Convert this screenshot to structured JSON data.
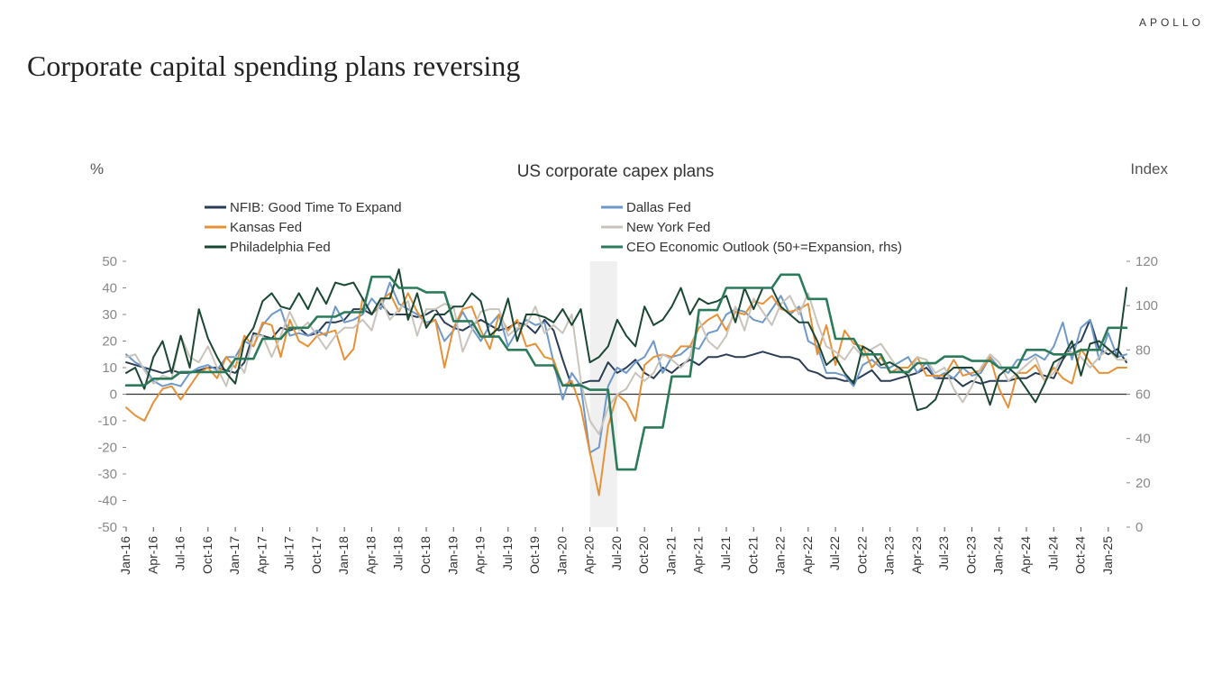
{
  "brand": "APOLLO",
  "title": "Corporate capital spending plans reversing",
  "chart": {
    "type": "line",
    "title": "US corporate capex plans",
    "y_left_label": "%",
    "y_right_label": "Index",
    "y_left": {
      "min": -50,
      "max": 50,
      "ticks": [
        -50,
        -40,
        -30,
        -20,
        -10,
        0,
        10,
        20,
        30,
        40,
        50
      ]
    },
    "y_right": {
      "min": 0,
      "max": 120,
      "ticks": [
        0,
        20,
        40,
        60,
        80,
        100,
        120
      ]
    },
    "x_labels": [
      "Jan-16",
      "Apr-16",
      "Jul-16",
      "Oct-16",
      "Jan-17",
      "Apr-17",
      "Jul-17",
      "Oct-17",
      "Jan-18",
      "Apr-18",
      "Jul-18",
      "Oct-18",
      "Jan-19",
      "Apr-19",
      "Jul-19",
      "Oct-19",
      "Jan-20",
      "Apr-20",
      "Jul-20",
      "Oct-20",
      "Jan-21",
      "Apr-21",
      "Jul-21",
      "Oct-21",
      "Jan-22",
      "Apr-22",
      "Jul-22",
      "Oct-22",
      "Jan-23",
      "Apr-23",
      "Jul-23",
      "Oct-23",
      "Jan-24",
      "Apr-24",
      "Jul-24",
      "Oct-24",
      "Jan-25"
    ],
    "n_points": 111,
    "recession_band": {
      "start_index": 51,
      "end_index": 54
    },
    "background_color": "#ffffff",
    "axis_color": "#333333",
    "tick_color": "#888888",
    "line_width": 2.0,
    "rhs_line_width": 2.6,
    "title_fontsize": 19,
    "label_fontsize": 17,
    "tick_fontsize": 15,
    "legend_fontsize": 15,
    "series": [
      {
        "name": "NFIB: Good Time To Expand",
        "color": "#2a3d55",
        "axis": "left",
        "values": [
          12,
          11,
          10,
          9,
          8,
          9,
          8,
          8,
          9,
          10,
          10,
          9,
          8,
          12,
          23,
          22,
          21,
          25,
          24,
          25,
          22,
          23,
          27,
          27,
          28,
          32,
          32,
          30,
          34,
          30,
          30,
          30,
          29,
          30,
          32,
          27,
          25,
          24,
          26,
          28,
          26,
          24,
          25,
          27,
          26,
          23,
          28,
          24,
          13,
          3,
          4,
          5,
          5,
          12,
          8,
          10,
          13,
          8,
          6,
          10,
          8,
          11,
          13,
          11,
          14,
          14,
          15,
          14,
          14,
          15,
          16,
          15,
          14,
          14,
          13,
          9,
          8,
          6,
          6,
          5,
          5,
          7,
          9,
          5,
          5,
          6,
          7,
          8,
          10,
          6,
          6,
          6,
          3,
          5,
          4,
          5,
          5,
          5,
          6,
          6,
          8,
          7,
          6,
          13,
          18,
          20,
          28,
          17,
          15,
          17,
          12
        ]
      },
      {
        "name": "Dallas Fed",
        "color": "#6e98c8",
        "axis": "left",
        "values": [
          15,
          12,
          10,
          5,
          3,
          4,
          3,
          8,
          10,
          11,
          9,
          14,
          14,
          20,
          18,
          26,
          30,
          32,
          22,
          23,
          22,
          24,
          22,
          33,
          27,
          28,
          30,
          36,
          32,
          42,
          34,
          32,
          30,
          27,
          28,
          20,
          24,
          31,
          25,
          20,
          26,
          30,
          18,
          24,
          28,
          26,
          27,
          12,
          -2,
          8,
          3,
          -22,
          -20,
          3,
          10,
          8,
          12,
          14,
          20,
          8,
          14,
          15,
          18,
          17,
          23,
          24,
          30,
          32,
          31,
          28,
          27,
          32,
          37,
          30,
          33,
          20,
          18,
          8,
          8,
          7,
          3,
          11,
          13,
          10,
          10,
          12,
          14,
          8,
          12,
          6,
          8,
          6,
          10,
          7,
          8,
          14,
          10,
          8,
          13,
          13,
          15,
          13,
          18,
          27,
          13,
          25,
          28,
          13,
          23,
          14,
          15
        ]
      },
      {
        "name": "Kansas Fed",
        "color": "#e69138",
        "axis": "left",
        "values": [
          -5,
          -8,
          -10,
          -3,
          2,
          3,
          -2,
          3,
          8,
          10,
          6,
          14,
          10,
          22,
          18,
          27,
          26,
          14,
          28,
          20,
          18,
          22,
          23,
          24,
          13,
          17,
          36,
          30,
          35,
          38,
          31,
          38,
          31,
          26,
          28,
          10,
          25,
          32,
          33,
          24,
          17,
          30,
          24,
          28,
          18,
          19,
          14,
          13,
          3,
          5,
          -5,
          -22,
          -38,
          -12,
          0,
          -3,
          -10,
          11,
          14,
          15,
          14,
          18,
          18,
          25,
          28,
          30,
          24,
          31,
          30,
          35,
          34,
          37,
          32,
          31,
          32,
          34,
          15,
          26,
          11,
          24,
          19,
          18,
          10,
          14,
          8,
          10,
          10,
          14,
          7,
          7,
          7,
          13,
          7,
          8,
          9,
          14,
          2,
          -5,
          8,
          8,
          11,
          5,
          10,
          6,
          4,
          17,
          12,
          8,
          8,
          10,
          10
        ]
      },
      {
        "name": "New York Fed",
        "color": "#c9c4bb",
        "axis": "left",
        "values": [
          14,
          15,
          9,
          4,
          7,
          6,
          22,
          14,
          12,
          18,
          10,
          3,
          14,
          8,
          22,
          22,
          14,
          22,
          31,
          24,
          27,
          22,
          17,
          22,
          25,
          25,
          28,
          24,
          36,
          28,
          32,
          35,
          22,
          32,
          32,
          34,
          33,
          16,
          24,
          31,
          32,
          32,
          22,
          25,
          26,
          33,
          23,
          26,
          23,
          30,
          5,
          -10,
          -15,
          -5,
          0,
          2,
          8,
          5,
          8,
          15,
          13,
          10,
          14,
          28,
          20,
          17,
          22,
          33,
          24,
          36,
          31,
          26,
          34,
          37,
          30,
          38,
          27,
          18,
          16,
          13,
          18,
          14,
          17,
          19,
          14,
          9,
          7,
          14,
          13,
          8,
          10,
          2,
          -3,
          3,
          10,
          15,
          12,
          5,
          8,
          11,
          14,
          5,
          8,
          15,
          16,
          14,
          10,
          14,
          17,
          13,
          13
        ]
      },
      {
        "name": "Philadelphia Fed",
        "color": "#1a4733",
        "axis": "left",
        "values": [
          8,
          10,
          2,
          14,
          20,
          8,
          22,
          10,
          32,
          21,
          14,
          8,
          4,
          20,
          25,
          35,
          38,
          33,
          32,
          38,
          32,
          40,
          34,
          42,
          41,
          42,
          36,
          30,
          36,
          36,
          47,
          28,
          38,
          25,
          30,
          30,
          33,
          33,
          38,
          35,
          22,
          25,
          36,
          20,
          30,
          30,
          29,
          27,
          32,
          26,
          32,
          12,
          14,
          18,
          28,
          22,
          18,
          33,
          26,
          28,
          33,
          40,
          30,
          36,
          34,
          35,
          37,
          27,
          40,
          32,
          40,
          40,
          33,
          30,
          27,
          27,
          20,
          11,
          14,
          8,
          4,
          18,
          16,
          11,
          12,
          10,
          7,
          -6,
          -5,
          -2,
          7,
          10,
          10,
          10,
          6,
          -4,
          7,
          10,
          7,
          2,
          -3,
          4,
          12,
          14,
          20,
          7,
          19,
          20,
          17,
          14,
          40
        ]
      },
      {
        "name": "CEO Economic Outlook (50+=Expansion, rhs)",
        "color": "#2b7a5a",
        "axis": "right",
        "values": [
          64,
          64,
          64,
          67,
          67,
          67,
          70,
          70,
          70,
          70,
          70,
          70,
          76,
          76,
          76,
          85,
          85,
          85,
          90,
          90,
          90,
          95,
          95,
          95,
          97,
          97,
          97,
          113,
          113,
          113,
          108,
          108,
          108,
          106,
          106,
          106,
          93,
          93,
          93,
          86,
          86,
          86,
          80,
          80,
          80,
          73,
          73,
          73,
          64,
          64,
          64,
          62,
          62,
          62,
          26,
          26,
          26,
          45,
          45,
          45,
          68,
          68,
          68,
          98,
          98,
          98,
          108,
          108,
          108,
          108,
          108,
          108,
          114,
          114,
          114,
          103,
          103,
          103,
          85,
          85,
          85,
          78,
          78,
          78,
          70,
          70,
          70,
          74,
          74,
          74,
          77,
          77,
          77,
          75,
          75,
          75,
          72,
          72,
          72,
          80,
          80,
          80,
          78,
          78,
          78,
          80,
          80,
          80,
          90,
          90,
          90
        ]
      }
    ],
    "legend": [
      {
        "label": "NFIB: Good Time To Expand",
        "color": "#2a3d55"
      },
      {
        "label": "Dallas Fed",
        "color": "#6e98c8"
      },
      {
        "label": "Kansas Fed",
        "color": "#e69138"
      },
      {
        "label": "New York Fed",
        "color": "#c9c4bb"
      },
      {
        "label": "Philadelphia Fed",
        "color": "#1a4733"
      },
      {
        "label": "CEO Economic Outlook (50+=Expansion, rhs)",
        "color": "#2b7a5a"
      }
    ]
  }
}
